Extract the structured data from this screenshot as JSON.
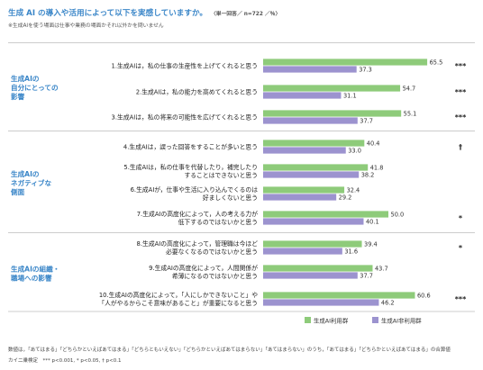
{
  "header": {
    "title": "生成 AI の導入や活用によって以下を実感していますか。",
    "title_note": "〈単一回答／ n=722 ／％〉",
    "subtitle": "※生成AIを使う場面は仕事や業務の場面かそれ以外かを問いません"
  },
  "categories": [
    {
      "label_lines": [
        "生成AIの",
        "自分にとっての",
        "影響"
      ]
    },
    {
      "label_lines": [
        "生成AIの",
        "ネガティブな",
        "側面"
      ]
    },
    {
      "label_lines": [
        "生成AIの組織・",
        "職場への影響"
      ]
    }
  ],
  "chart_data": {
    "type": "bar",
    "orientation": "horizontal",
    "xlim": [
      0,
      100
    ],
    "grid": false,
    "legend_position": "bottom-right",
    "series": [
      {
        "name": "生成AI利用群",
        "color": "#8ecb7a"
      },
      {
        "name": "生成AI非利用群",
        "color": "#9c93cf"
      }
    ],
    "items": [
      {
        "group": 0,
        "lines": [
          "1.生成AIは，私の仕事の生産性を上げてくれると思う"
        ],
        "values": [
          65.5,
          37.3
        ],
        "labels": [
          "65.5",
          "37.3"
        ],
        "sig": "***"
      },
      {
        "group": 0,
        "lines": [
          "2.生成AIは，私の能力を高めてくれると思う"
        ],
        "values": [
          54.7,
          31.1
        ],
        "labels": [
          "54.7",
          "31.1"
        ],
        "sig": "***"
      },
      {
        "group": 0,
        "lines": [
          "3.生成AIは，私の将来の可能性を広げてくれると思う"
        ],
        "values": [
          55.1,
          37.7
        ],
        "labels": [
          "55.1",
          "37.7"
        ],
        "sig": "***"
      },
      {
        "group": 1,
        "lines": [
          "4.生成AIは，誤った回答をすることが多いと思う"
        ],
        "values": [
          40.4,
          33.0
        ],
        "labels": [
          "40.4",
          "33.0"
        ],
        "sig": "†"
      },
      {
        "group": 1,
        "lines": [
          "5.生成AIは，私の仕事を代替したり，補完したり",
          "することはできないと思う"
        ],
        "values": [
          41.8,
          38.2
        ],
        "labels": [
          "41.8",
          "38.2"
        ],
        "sig": ""
      },
      {
        "group": 1,
        "lines": [
          "6.生成AIが，仕事や生活に入り込んでくるのは",
          "好ましくないと思う"
        ],
        "values": [
          32.4,
          29.2
        ],
        "labels": [
          "32.4",
          "29.2"
        ],
        "sig": ""
      },
      {
        "group": 1,
        "lines": [
          "7.生成AIの高度化によって，人の考える力が",
          "低下するのではないかと思う"
        ],
        "values": [
          50.0,
          40.1
        ],
        "labels": [
          "50.0",
          "40.1"
        ],
        "sig": "*"
      },
      {
        "group": 2,
        "lines": [
          "8.生成AIの高度化によって，管理職は今ほど",
          "必要なくなるのではないかと思う"
        ],
        "values": [
          39.4,
          31.6
        ],
        "labels": [
          "39.4",
          "31.6"
        ],
        "sig": "*"
      },
      {
        "group": 2,
        "lines": [
          "9.生成AIの高度化によって，人間関係が",
          "希薄になるのではないかと思う"
        ],
        "values": [
          43.7,
          37.7
        ],
        "labels": [
          "43.7",
          "37.7"
        ],
        "sig": ""
      },
      {
        "group": 2,
        "lines": [
          "10.生成AIの高度化によって，「人にしかできないこと」や",
          "「人がやるからこそ意味があること」が重要になると思う"
        ],
        "values": [
          60.6,
          46.2
        ],
        "labels": [
          "60.6",
          "46.2"
        ],
        "sig": "***"
      }
    ]
  },
  "footnotes": {
    "line1": "数値は，「あてはまる」「どちらかといえばあてはまる」「どちらともいえない」「どちらかといえばあてはまらない」「あてはまらない」のうち，「あてはまる」「どちらかといえばあてはまる」の合算値",
    "line2": "カイ二乗検定　*** p<0.001, * p<0.05, † p<0.1"
  }
}
